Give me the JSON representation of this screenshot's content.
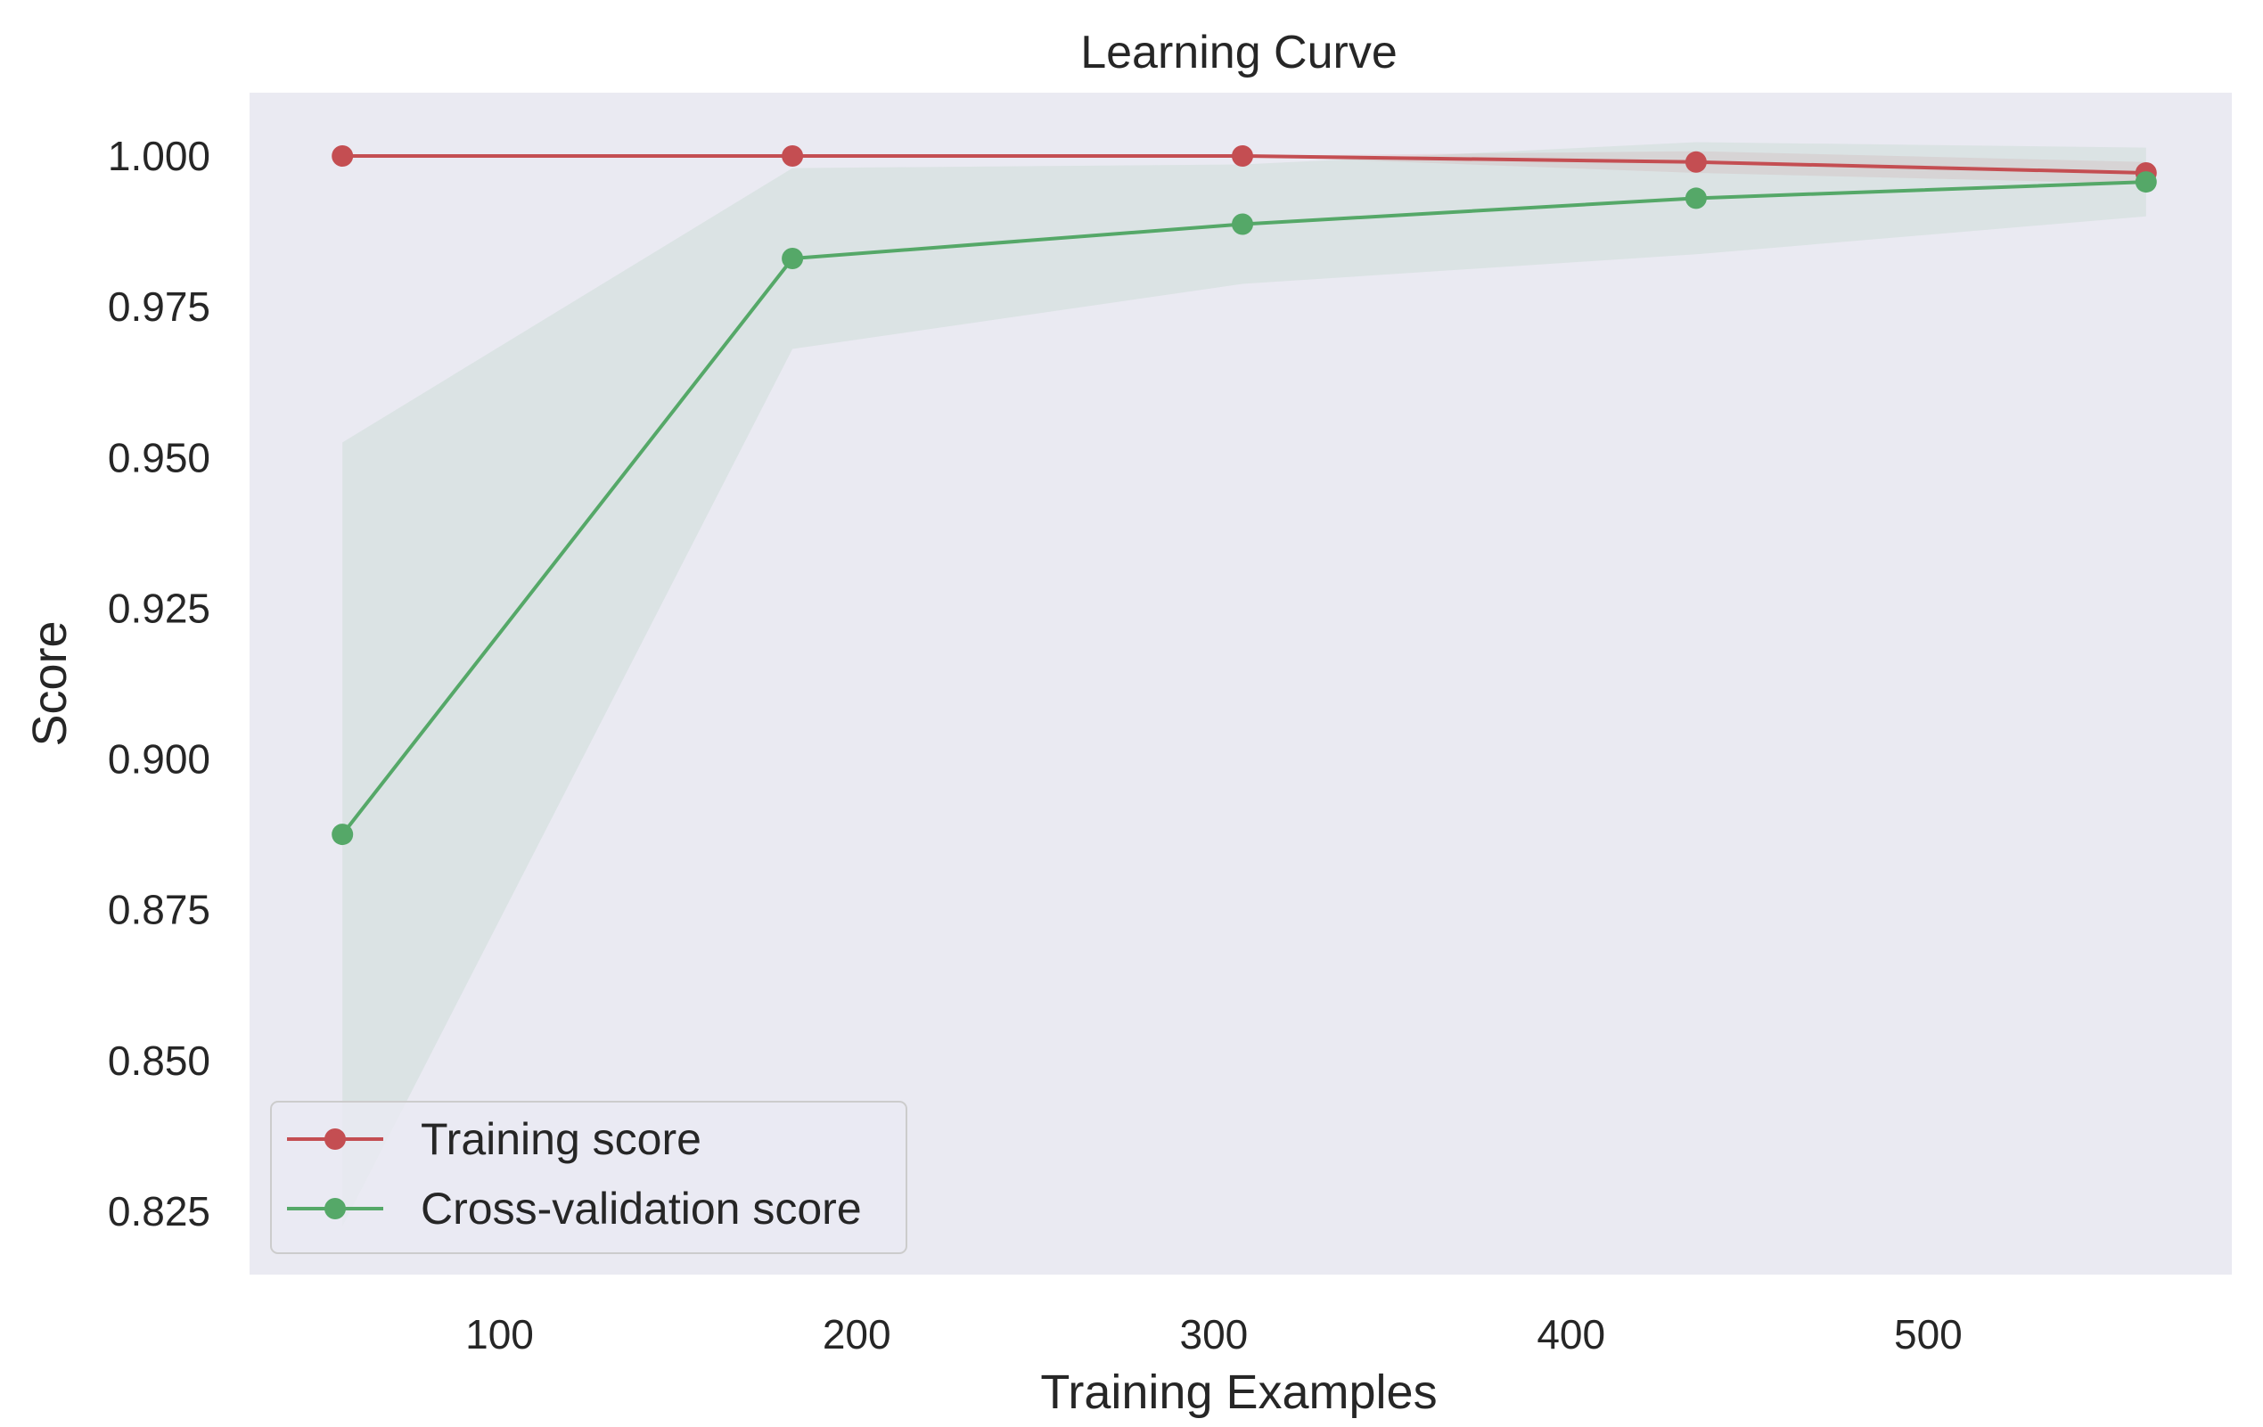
{
  "chart_data": {
    "type": "line",
    "title": "Learning Curve",
    "xlabel": "Training Examples",
    "ylabel": "Score",
    "xlim": [
      30,
      585
    ],
    "ylim": [
      0.8145,
      1.0105
    ],
    "xticks": [
      100,
      200,
      300,
      400,
      500
    ],
    "yticks": [
      0.825,
      0.85,
      0.875,
      0.9,
      0.925,
      0.95,
      0.975,
      1.0
    ],
    "ytick_labels": [
      "0.825",
      "0.850",
      "0.875",
      "0.900",
      "0.925",
      "0.950",
      "0.975",
      "1.000"
    ],
    "grid": false,
    "legend_position": "lower-left",
    "x": [
      56,
      182,
      308,
      435,
      561
    ],
    "series": [
      {
        "name": "Training score",
        "color": "#c44e52",
        "values": [
          1.0,
          1.0,
          1.0,
          0.999,
          0.9972
        ],
        "band_low": [
          1.0,
          1.0,
          1.0,
          0.9972,
          0.9954
        ],
        "band_high": [
          1.0,
          1.0,
          1.0,
          1.0008,
          0.999
        ]
      },
      {
        "name": "Cross-validation score",
        "color": "#55a868",
        "values": [
          0.8875,
          0.983,
          0.9887,
          0.993,
          0.9957
        ],
        "band_low": [
          0.8225,
          0.968,
          0.9788,
          0.9837,
          0.99
        ],
        "band_high": [
          0.9525,
          0.998,
          0.9986,
          1.0023,
          1.0014
        ]
      }
    ]
  }
}
